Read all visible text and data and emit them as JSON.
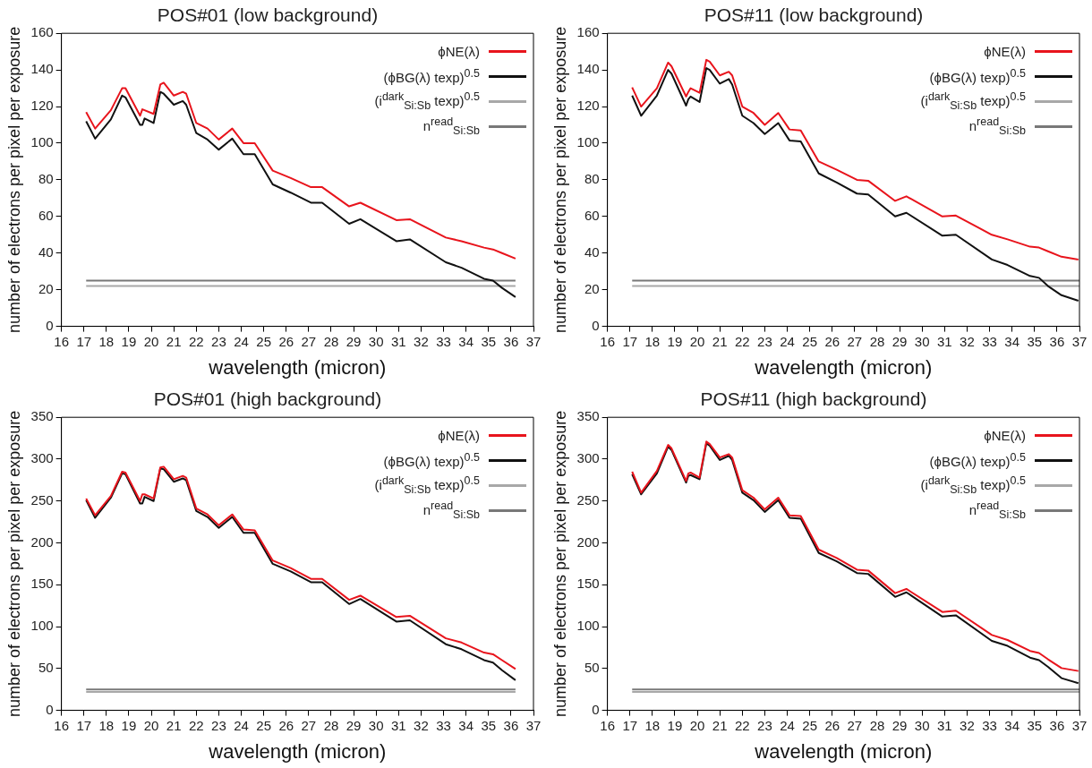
{
  "chart_data": [
    {
      "type": "line",
      "title": "POS#01 (low background)",
      "xlabel": "wavelength (micron)",
      "ylabel": "number of electrons per pixel per exposure",
      "legend": "top right",
      "grid": false,
      "marker": "none",
      "xlim": [
        16,
        37
      ],
      "xticks": [
        16,
        17,
        18,
        19,
        20,
        21,
        22,
        23,
        24,
        25,
        26,
        27,
        28,
        29,
        30,
        31,
        32,
        33,
        34,
        35,
        36,
        37
      ],
      "ylim": [
        0,
        160
      ],
      "yticks": [
        0,
        20,
        40,
        60,
        80,
        100,
        120,
        140,
        160
      ],
      "x": [
        17.1,
        17.5,
        18.2,
        18.7,
        18.85,
        19.5,
        19.6,
        19.7,
        20.1,
        20.4,
        20.55,
        21.0,
        21.4,
        21.55,
        22.0,
        22.5,
        23.0,
        23.6,
        24.1,
        24.6,
        25.4,
        26.2,
        27.1,
        27.6,
        28.8,
        29.3,
        30.9,
        31.5,
        33.1,
        33.8,
        34.8,
        35.2,
        35.6,
        36.2
      ],
      "series": [
        {
          "name": "ϕNE(λ)",
          "color": "#e8141c",
          "values": [
            117,
            108,
            118,
            130,
            130,
            115,
            118.5,
            118,
            116,
            132,
            133,
            126,
            128,
            127,
            111,
            108,
            102,
            108,
            100,
            100,
            85,
            81,
            76,
            76,
            65.5,
            67.5,
            58,
            58.5,
            48.5,
            46.5,
            43,
            42,
            40,
            37
          ]
        },
        {
          "name": "(ϕBG(λ) texp)$^{0.5}$",
          "color": "#111111",
          "values": [
            112,
            102.5,
            113,
            126,
            125,
            110,
            110,
            113.5,
            111,
            128,
            127,
            121,
            123,
            121,
            105.5,
            102,
            96.5,
            102.5,
            94,
            94,
            77.5,
            73,
            67.5,
            67.5,
            56,
            58.5,
            46.5,
            47.5,
            35,
            32,
            26,
            25,
            21,
            16
          ]
        },
        {
          "name": "(i$^{dark}$$_{Si:Sb}$ texp)$^{0.5}$",
          "color": "#a8a8a8",
          "x": [
            17.1,
            36.2
          ],
          "values": [
            22,
            22
          ]
        },
        {
          "name": "n$^{read}$$_{Si:Sb}$",
          "color": "#787878",
          "x": [
            17.1,
            36.2
          ],
          "values": [
            25,
            25
          ]
        }
      ]
    },
    {
      "type": "line",
      "title": "POS#11 (low background)",
      "xlabel": "wavelength (micron)",
      "ylabel": "number of electrons per pixel per exposure",
      "legend": "top right",
      "grid": false,
      "marker": "none",
      "xlim": [
        16,
        37
      ],
      "xticks": [
        16,
        17,
        18,
        19,
        20,
        21,
        22,
        23,
        24,
        25,
        26,
        27,
        28,
        29,
        30,
        31,
        32,
        33,
        34,
        35,
        36,
        37
      ],
      "ylim": [
        0,
        160
      ],
      "yticks": [
        0,
        20,
        40,
        60,
        80,
        100,
        120,
        140,
        160
      ],
      "x": [
        17.1,
        17.5,
        18.2,
        18.7,
        18.85,
        19.5,
        19.6,
        19.7,
        20.1,
        20.4,
        20.55,
        21.0,
        21.4,
        21.55,
        22.0,
        22.5,
        23.0,
        23.6,
        24.1,
        24.6,
        25.4,
        26.2,
        27.1,
        27.6,
        28.8,
        29.3,
        30.9,
        31.5,
        33.1,
        33.8,
        34.8,
        35.2,
        35.6,
        36.2,
        36.95
      ],
      "series": [
        {
          "name": "ϕNE(λ)",
          "color": "#e8141c",
          "values": [
            130.5,
            120,
            130,
            144,
            142,
            125.5,
            128,
            130,
            127.5,
            145.5,
            144.5,
            137,
            139,
            137,
            120,
            116.5,
            110,
            116.5,
            107.5,
            107,
            90,
            85.5,
            80,
            79.5,
            68.5,
            71,
            60,
            60.5,
            50,
            47.5,
            43.5,
            43,
            41,
            38,
            36.5
          ]
        },
        {
          "name": "(ϕBG(λ) texp)$^{0.5}$",
          "color": "#111111",
          "values": [
            126,
            115,
            126,
            140,
            138,
            120.5,
            124,
            125.5,
            122.5,
            141,
            140,
            132.5,
            135,
            132,
            115,
            111,
            105,
            111,
            101.5,
            101,
            83.5,
            78.5,
            72.5,
            72,
            60,
            62,
            49.5,
            50,
            36.5,
            33.5,
            27.5,
            26.5,
            22,
            17,
            14
          ]
        },
        {
          "name": "(i$^{dark}$$_{Si:Sb}$ texp)$^{0.5}$",
          "color": "#a8a8a8",
          "x": [
            17.1,
            37
          ],
          "values": [
            22,
            22
          ]
        },
        {
          "name": "n$^{read}$$_{Si:Sb}$",
          "color": "#787878",
          "x": [
            17.1,
            37
          ],
          "values": [
            25,
            25
          ]
        }
      ]
    },
    {
      "type": "line",
      "title": "POS#01 (high background)",
      "xlabel": "wavelength (micron)",
      "ylabel": "number of electrons per pixel per exposure",
      "legend": "top right",
      "grid": false,
      "marker": "none",
      "xlim": [
        16,
        37
      ],
      "xticks": [
        16,
        17,
        18,
        19,
        20,
        21,
        22,
        23,
        24,
        25,
        26,
        27,
        28,
        29,
        30,
        31,
        32,
        33,
        34,
        35,
        36,
        37
      ],
      "ylim": [
        0,
        350
      ],
      "yticks": [
        0,
        50,
        100,
        150,
        200,
        250,
        300,
        350
      ],
      "x": [
        17.1,
        17.5,
        18.2,
        18.7,
        18.85,
        19.5,
        19.6,
        19.7,
        20.1,
        20.4,
        20.55,
        21.0,
        21.4,
        21.55,
        22.0,
        22.5,
        23.0,
        23.6,
        24.1,
        24.6,
        25.4,
        26.2,
        27.1,
        27.6,
        28.8,
        29.3,
        30.9,
        31.5,
        33.1,
        33.8,
        34.8,
        35.2,
        35.6,
        36.2
      ],
      "series": [
        {
          "name": "ϕNE(λ)",
          "color": "#e8141c",
          "values": [
            253,
            233,
            256,
            285,
            284,
            250,
            258,
            258,
            253,
            290,
            291,
            276,
            280,
            278,
            241,
            234,
            221,
            234,
            216,
            215,
            179,
            170,
            157,
            157,
            132,
            137,
            111.5,
            113,
            86,
            81,
            69,
            67,
            60,
            49.5
          ]
        },
        {
          "name": "(ϕBG(λ) texp)$^{0.5}$",
          "color": "#111111",
          "values": [
            251,
            230,
            254,
            283,
            282,
            247,
            247,
            255,
            250,
            289,
            288,
            273,
            277,
            275,
            238,
            231,
            218,
            231,
            212,
            212,
            175,
            166,
            153,
            153,
            127,
            133,
            106,
            107.5,
            79,
            73,
            60,
            57,
            48,
            36
          ]
        },
        {
          "name": "(i$^{dark}$$_{Si:Sb}$ texp)$^{0.5}$",
          "color": "#a8a8a8",
          "x": [
            17.1,
            36.2
          ],
          "values": [
            22,
            22
          ]
        },
        {
          "name": "n$^{read}$$_{Si:Sb}$",
          "color": "#787878",
          "x": [
            17.1,
            36.2
          ],
          "values": [
            25,
            25
          ]
        }
      ]
    },
    {
      "type": "line",
      "title": "POS#11 (high background)",
      "xlabel": "wavelength (micron)",
      "ylabel": "number of electrons per pixel per exposure",
      "legend": "top right",
      "grid": false,
      "marker": "none",
      "xlim": [
        16,
        37
      ],
      "xticks": [
        16,
        17,
        18,
        19,
        20,
        21,
        22,
        23,
        24,
        25,
        26,
        27,
        28,
        29,
        30,
        31,
        32,
        33,
        34,
        35,
        36,
        37
      ],
      "ylim": [
        0,
        350
      ],
      "yticks": [
        0,
        50,
        100,
        150,
        200,
        250,
        300,
        350
      ],
      "x": [
        17.1,
        17.5,
        18.2,
        18.7,
        18.85,
        19.5,
        19.6,
        19.7,
        20.1,
        20.4,
        20.55,
        21.0,
        21.4,
        21.55,
        22.0,
        22.5,
        23.0,
        23.6,
        24.1,
        24.6,
        25.4,
        26.2,
        27.1,
        27.6,
        28.8,
        29.3,
        30.9,
        31.5,
        33.1,
        33.8,
        34.8,
        35.2,
        35.6,
        36.2,
        36.95
      ],
      "series": [
        {
          "name": "ϕNE(λ)",
          "color": "#e8141c",
          "values": [
            285,
            260,
            286,
            317,
            313,
            274,
            283,
            284,
            278,
            321,
            318,
            302,
            306,
            302,
            263,
            254,
            240,
            254,
            233,
            232,
            192,
            182,
            168,
            167,
            140,
            145,
            117.5,
            119,
            90,
            84,
            71,
            68.5,
            61,
            50.5,
            47
          ]
        },
        {
          "name": "(ϕBG(λ) texp)$^{0.5}$",
          "color": "#111111",
          "values": [
            282,
            258,
            283,
            315,
            311,
            272,
            280,
            281,
            276,
            319,
            316,
            299,
            304,
            299,
            260,
            251,
            237,
            251,
            230,
            229,
            188,
            178,
            164,
            163,
            135.5,
            141,
            112,
            113.5,
            83,
            77,
            63,
            60,
            52,
            38.5,
            32.5
          ]
        },
        {
          "name": "(i$^{dark}$$_{Si:Sb}$ texp)$^{0.5}$",
          "color": "#a8a8a8",
          "x": [
            17.1,
            37
          ],
          "values": [
            22,
            22
          ]
        },
        {
          "name": "n$^{read}$$_{Si:Sb}$",
          "color": "#787878",
          "x": [
            17.1,
            37
          ],
          "values": [
            25,
            25
          ]
        }
      ]
    }
  ]
}
